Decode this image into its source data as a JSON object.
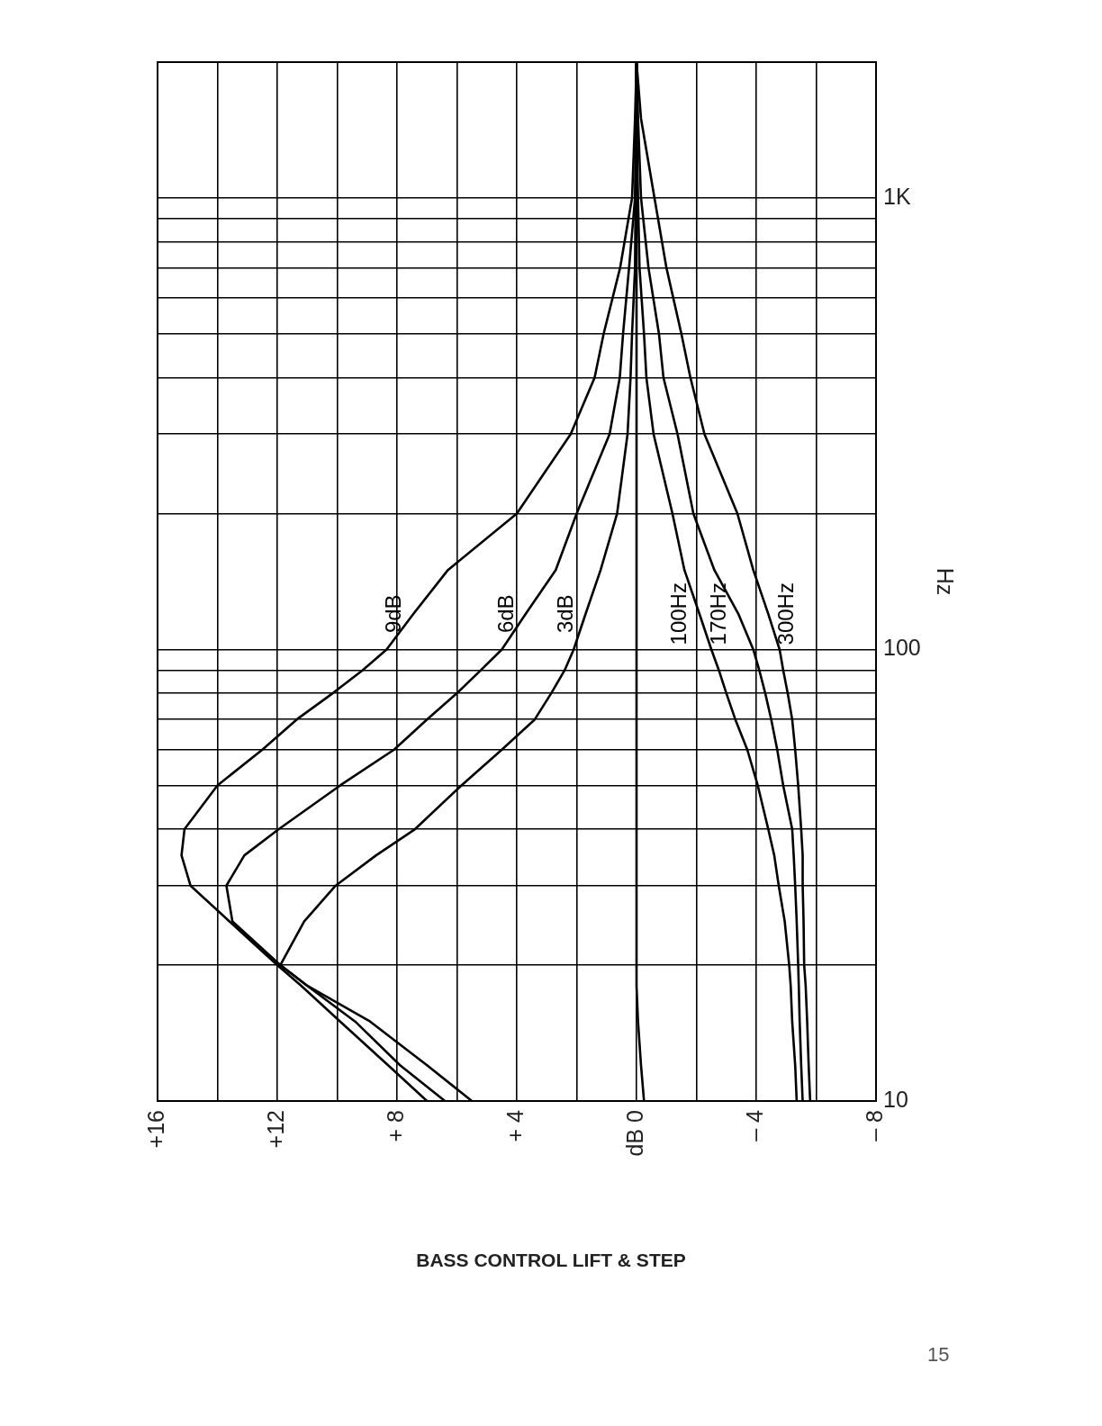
{
  "chart_data": {
    "type": "line",
    "title": "BASS CONTROL LIFT & STEP",
    "ylabel": "Hz",
    "log": "y",
    "grid": true,
    "marker": "none",
    "line_style": "solid",
    "annotations": [
      "15"
    ],
    "xlim": [
      16,
      -8
    ],
    "xticks": [
      {
        "value": 16,
        "label": "+16"
      },
      {
        "value": 14,
        "label": null
      },
      {
        "value": 12,
        "label": "+12"
      },
      {
        "value": 10,
        "label": null
      },
      {
        "value": 8,
        "label": "+ 8"
      },
      {
        "value": 6,
        "label": null
      },
      {
        "value": 4,
        "label": "+ 4"
      },
      {
        "value": 2,
        "label": null
      },
      {
        "value": 0,
        "label": "dB 0"
      },
      {
        "value": -2,
        "label": null
      },
      {
        "value": -4,
        "label": "– 4"
      },
      {
        "value": -6,
        "label": null
      },
      {
        "value": -8,
        "label": "– 8"
      }
    ],
    "ylim": [
      10,
      2000
    ],
    "yticks": [
      10,
      {
        "value": 20,
        "label": null
      },
      {
        "value": 30,
        "label": null
      },
      {
        "value": 40,
        "label": null
      },
      {
        "value": 50,
        "label": null
      },
      {
        "value": 60,
        "label": null
      },
      {
        "value": 70,
        "label": null
      },
      {
        "value": 80,
        "label": null
      },
      {
        "value": 90,
        "label": null
      },
      100,
      {
        "value": 200,
        "label": null
      },
      {
        "value": 300,
        "label": null
      },
      {
        "value": 400,
        "label": null
      },
      {
        "value": 500,
        "label": null
      },
      {
        "value": 600,
        "label": null
      },
      {
        "value": 700,
        "label": null
      },
      {
        "value": 800,
        "label": null
      },
      {
        "value": 900,
        "label": null
      },
      {
        "value": 1000,
        "label": "1K"
      }
    ],
    "series": [
      {
        "name": "9dB",
        "color": "#000000",
        "x": [
          7.0,
          8.3,
          9.9,
          11.2,
          12.0,
          13.6,
          14.9,
          15.2,
          15.1,
          14.0,
          12.5,
          11.35,
          10.15,
          9.15,
          8.35,
          7.45,
          6.3,
          4.0,
          2.2,
          1.4,
          1.1,
          0.55,
          0.15,
          0.05,
          0
        ],
        "values": [
          10,
          12,
          15,
          18,
          20,
          25,
          30,
          35,
          40,
          50,
          60,
          70,
          80,
          90,
          100,
          120,
          150,
          200,
          300,
          400,
          500,
          700,
          1000,
          1500,
          2000
        ]
      },
      {
        "name": "6dB",
        "color": "#000000",
        "x": [
          6.4,
          7.9,
          9.4,
          11.0,
          11.9,
          13.5,
          13.7,
          13.1,
          11.95,
          9.9,
          8.1,
          7.0,
          6.0,
          5.2,
          4.5,
          3.7,
          2.7,
          2.0,
          0.9,
          0.56,
          0.45,
          0.25,
          0.05,
          0
        ],
        "values": [
          10,
          12,
          15,
          18,
          20,
          25,
          30,
          35,
          40,
          50,
          60,
          70,
          80,
          90,
          100,
          120,
          150,
          200,
          300,
          400,
          500,
          700,
          1000,
          2000
        ]
      },
      {
        "name": "3dB",
        "color": "#000000",
        "x": [
          5.5,
          7.0,
          8.9,
          11.0,
          11.9,
          11.1,
          10.05,
          8.7,
          7.4,
          5.85,
          4.5,
          3.4,
          2.85,
          2.4,
          2.1,
          1.7,
          1.2,
          0.65,
          0.3,
          0.2,
          0.15,
          0.05,
          0
        ],
        "values": [
          10,
          12,
          15,
          18,
          20,
          25,
          30,
          35,
          40,
          50,
          60,
          70,
          80,
          90,
          100,
          120,
          150,
          200,
          300,
          400,
          500,
          700,
          2000
        ]
      },
      {
        "color": "#000000",
        "x": [
          -0.25,
          -0.15,
          -0.05,
          0,
          0,
          0,
          0,
          0,
          0,
          0,
          0,
          0,
          0,
          0,
          0,
          0,
          0,
          0,
          0,
          0,
          0,
          0,
          0,
          0,
          0
        ],
        "values": [
          10,
          12,
          15,
          18,
          20,
          25,
          30,
          35,
          40,
          50,
          60,
          70,
          80,
          90,
          100,
          120,
          150,
          200,
          300,
          400,
          500,
          700,
          1000,
          1500,
          2000
        ]
      },
      {
        "name": "100Hz",
        "color": "#000000",
        "x": [
          -5.35,
          -5.3,
          -5.2,
          -5.15,
          -5.1,
          -4.95,
          -4.75,
          -4.6,
          -4.4,
          -4.05,
          -3.7,
          -3.3,
          -3.0,
          -2.75,
          -2.5,
          -2.1,
          -1.6,
          -1.2,
          -0.57,
          -0.33,
          -0.25,
          -0.1,
          -0.05,
          0,
          0
        ],
        "values": [
          10,
          12,
          15,
          18,
          20,
          25,
          30,
          35,
          40,
          50,
          60,
          70,
          80,
          90,
          100,
          120,
          150,
          200,
          300,
          400,
          500,
          700,
          1000,
          1500,
          2000
        ]
      },
      {
        "name": "170Hz",
        "color": "#000000",
        "x": [
          -5.55,
          -5.5,
          -5.45,
          -5.42,
          -5.4,
          -5.35,
          -5.3,
          -5.25,
          -5.2,
          -4.9,
          -4.7,
          -4.5,
          -4.3,
          -4.1,
          -3.9,
          -3.4,
          -2.6,
          -1.9,
          -1.37,
          -0.9,
          -0.75,
          -0.4,
          -0.15,
          -0.05,
          0
        ],
        "values": [
          10,
          12,
          15,
          18,
          20,
          25,
          30,
          35,
          40,
          50,
          60,
          70,
          80,
          90,
          100,
          120,
          150,
          200,
          300,
          400,
          500,
          700,
          1000,
          1500,
          2000
        ]
      },
      {
        "name": "300Hz",
        "color": "#000000",
        "x": [
          -5.8,
          -5.75,
          -5.7,
          -5.65,
          -5.6,
          -5.58,
          -5.55,
          -5.55,
          -5.5,
          -5.4,
          -5.3,
          -5.2,
          -5.05,
          -4.9,
          -4.78,
          -4.4,
          -3.9,
          -3.37,
          -2.27,
          -1.8,
          -1.5,
          -1.0,
          -0.6,
          -0.15,
          0
        ],
        "values": [
          10,
          12,
          15,
          18,
          20,
          25,
          30,
          35,
          40,
          50,
          60,
          70,
          80,
          90,
          100,
          120,
          150,
          200,
          300,
          400,
          500,
          700,
          1000,
          1500,
          2000
        ]
      }
    ]
  }
}
